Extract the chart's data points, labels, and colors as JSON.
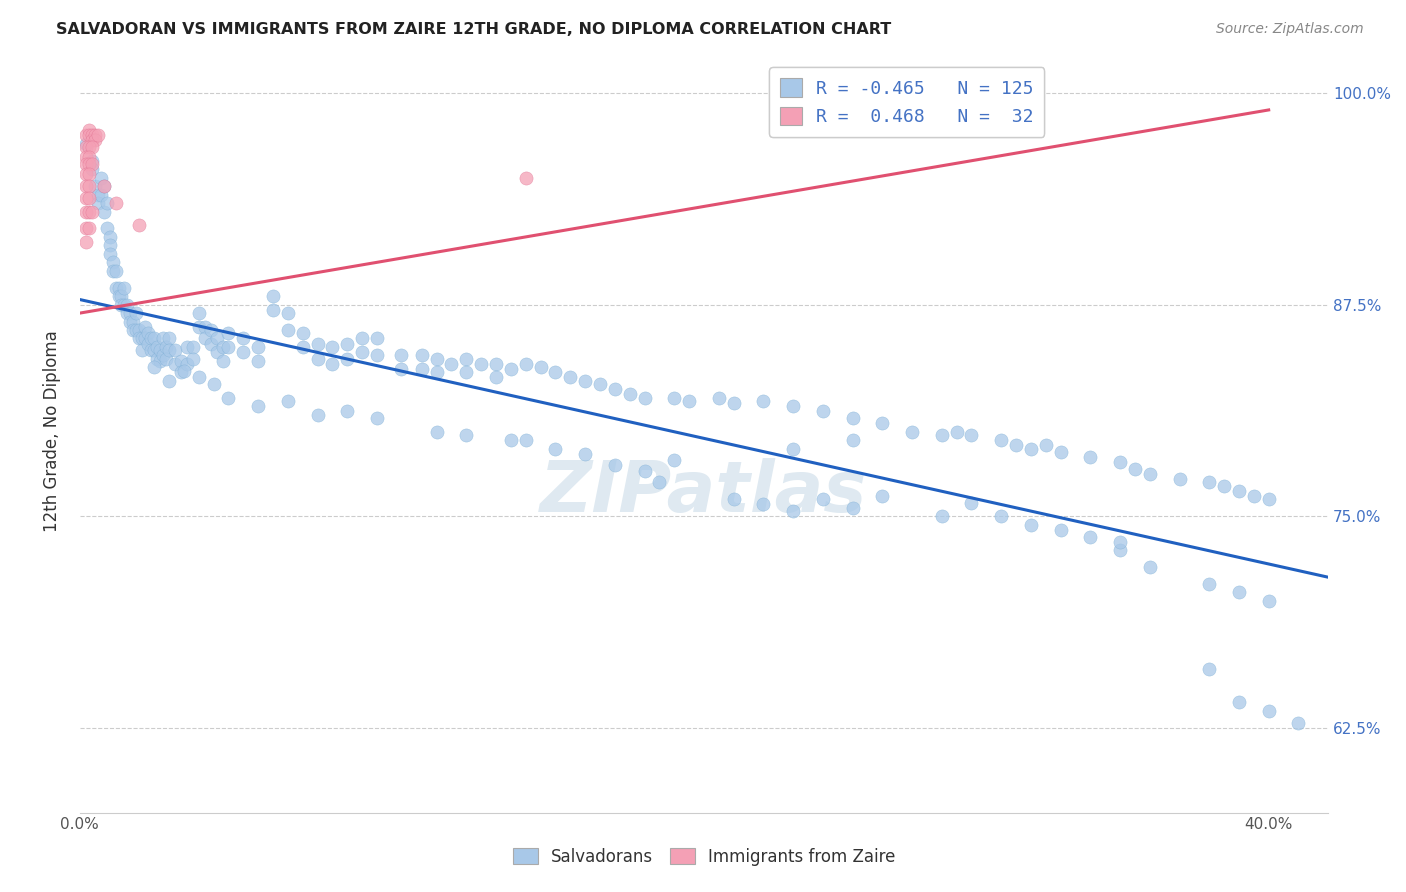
{
  "title": "SALVADORAN VS IMMIGRANTS FROM ZAIRE 12TH GRADE, NO DIPLOMA CORRELATION CHART",
  "source": "Source: ZipAtlas.com",
  "ylabel": "12th Grade, No Diploma",
  "xlim": [
    0.0,
    0.42
  ],
  "ylim": [
    0.575,
    1.025
  ],
  "blue_color": "#a8c8e8",
  "blue_edge_color": "#7aadd4",
  "pink_color": "#f4a0b5",
  "pink_edge_color": "#e07090",
  "trendline_blue_color": "#2060c0",
  "trendline_pink_color": "#e05070",
  "watermark": "ZIPatlas",
  "blue_trend_x": [
    0.0,
    0.42
  ],
  "blue_trend_y": [
    0.878,
    0.714
  ],
  "pink_trend_x": [
    0.0,
    0.4
  ],
  "pink_trend_y": [
    0.87,
    0.99
  ],
  "blue_points": [
    [
      0.002,
      0.97
    ],
    [
      0.004,
      0.96
    ],
    [
      0.004,
      0.955
    ],
    [
      0.005,
      0.945
    ],
    [
      0.006,
      0.94
    ],
    [
      0.006,
      0.935
    ],
    [
      0.007,
      0.95
    ],
    [
      0.007,
      0.94
    ],
    [
      0.008,
      0.93
    ],
    [
      0.008,
      0.945
    ],
    [
      0.009,
      0.92
    ],
    [
      0.009,
      0.935
    ],
    [
      0.01,
      0.915
    ],
    [
      0.01,
      0.91
    ],
    [
      0.01,
      0.905
    ],
    [
      0.011,
      0.9
    ],
    [
      0.011,
      0.895
    ],
    [
      0.012,
      0.895
    ],
    [
      0.012,
      0.885
    ],
    [
      0.013,
      0.885
    ],
    [
      0.013,
      0.88
    ],
    [
      0.014,
      0.88
    ],
    [
      0.014,
      0.875
    ],
    [
      0.015,
      0.885
    ],
    [
      0.015,
      0.875
    ],
    [
      0.016,
      0.875
    ],
    [
      0.016,
      0.87
    ],
    [
      0.017,
      0.87
    ],
    [
      0.017,
      0.865
    ],
    [
      0.018,
      0.865
    ],
    [
      0.018,
      0.86
    ],
    [
      0.019,
      0.86
    ],
    [
      0.019,
      0.87
    ],
    [
      0.02,
      0.86
    ],
    [
      0.02,
      0.855
    ],
    [
      0.021,
      0.855
    ],
    [
      0.021,
      0.848
    ],
    [
      0.022,
      0.862
    ],
    [
      0.022,
      0.855
    ],
    [
      0.023,
      0.858
    ],
    [
      0.023,
      0.852
    ],
    [
      0.024,
      0.855
    ],
    [
      0.024,
      0.848
    ],
    [
      0.025,
      0.855
    ],
    [
      0.025,
      0.848
    ],
    [
      0.026,
      0.85
    ],
    [
      0.026,
      0.843
    ],
    [
      0.027,
      0.848
    ],
    [
      0.027,
      0.842
    ],
    [
      0.028,
      0.855
    ],
    [
      0.028,
      0.845
    ],
    [
      0.029,
      0.85
    ],
    [
      0.029,
      0.843
    ],
    [
      0.03,
      0.855
    ],
    [
      0.03,
      0.848
    ],
    [
      0.032,
      0.848
    ],
    [
      0.032,
      0.84
    ],
    [
      0.034,
      0.842
    ],
    [
      0.034,
      0.835
    ],
    [
      0.036,
      0.85
    ],
    [
      0.036,
      0.84
    ],
    [
      0.038,
      0.85
    ],
    [
      0.038,
      0.843
    ],
    [
      0.04,
      0.87
    ],
    [
      0.04,
      0.862
    ],
    [
      0.042,
      0.862
    ],
    [
      0.042,
      0.855
    ],
    [
      0.044,
      0.86
    ],
    [
      0.044,
      0.852
    ],
    [
      0.046,
      0.855
    ],
    [
      0.046,
      0.847
    ],
    [
      0.048,
      0.85
    ],
    [
      0.048,
      0.842
    ],
    [
      0.05,
      0.858
    ],
    [
      0.05,
      0.85
    ],
    [
      0.055,
      0.855
    ],
    [
      0.055,
      0.847
    ],
    [
      0.06,
      0.85
    ],
    [
      0.06,
      0.842
    ],
    [
      0.065,
      0.88
    ],
    [
      0.065,
      0.872
    ],
    [
      0.07,
      0.87
    ],
    [
      0.07,
      0.86
    ],
    [
      0.075,
      0.858
    ],
    [
      0.075,
      0.85
    ],
    [
      0.08,
      0.852
    ],
    [
      0.08,
      0.843
    ],
    [
      0.085,
      0.85
    ],
    [
      0.085,
      0.84
    ],
    [
      0.09,
      0.852
    ],
    [
      0.09,
      0.843
    ],
    [
      0.095,
      0.855
    ],
    [
      0.095,
      0.847
    ],
    [
      0.1,
      0.855
    ],
    [
      0.1,
      0.845
    ],
    [
      0.108,
      0.845
    ],
    [
      0.108,
      0.837
    ],
    [
      0.115,
      0.845
    ],
    [
      0.115,
      0.837
    ],
    [
      0.12,
      0.843
    ],
    [
      0.12,
      0.835
    ],
    [
      0.125,
      0.84
    ],
    [
      0.13,
      0.843
    ],
    [
      0.13,
      0.835
    ],
    [
      0.135,
      0.84
    ],
    [
      0.14,
      0.84
    ],
    [
      0.14,
      0.832
    ],
    [
      0.145,
      0.837
    ],
    [
      0.15,
      0.84
    ],
    [
      0.155,
      0.838
    ],
    [
      0.16,
      0.835
    ],
    [
      0.165,
      0.832
    ],
    [
      0.17,
      0.83
    ],
    [
      0.175,
      0.828
    ],
    [
      0.18,
      0.825
    ],
    [
      0.185,
      0.822
    ],
    [
      0.19,
      0.82
    ],
    [
      0.2,
      0.82
    ],
    [
      0.205,
      0.818
    ],
    [
      0.215,
      0.82
    ],
    [
      0.22,
      0.817
    ],
    [
      0.23,
      0.818
    ],
    [
      0.24,
      0.815
    ],
    [
      0.25,
      0.812
    ],
    [
      0.26,
      0.808
    ],
    [
      0.27,
      0.805
    ],
    [
      0.28,
      0.8
    ],
    [
      0.29,
      0.798
    ],
    [
      0.295,
      0.8
    ],
    [
      0.3,
      0.798
    ],
    [
      0.31,
      0.795
    ],
    [
      0.315,
      0.792
    ],
    [
      0.32,
      0.79
    ],
    [
      0.325,
      0.792
    ],
    [
      0.33,
      0.788
    ],
    [
      0.34,
      0.785
    ],
    [
      0.35,
      0.782
    ],
    [
      0.355,
      0.778
    ],
    [
      0.36,
      0.775
    ],
    [
      0.37,
      0.772
    ],
    [
      0.38,
      0.77
    ],
    [
      0.385,
      0.768
    ],
    [
      0.39,
      0.765
    ],
    [
      0.395,
      0.762
    ],
    [
      0.4,
      0.76
    ],
    [
      0.24,
      0.79
    ],
    [
      0.26,
      0.795
    ],
    [
      0.18,
      0.78
    ],
    [
      0.19,
      0.777
    ],
    [
      0.12,
      0.8
    ],
    [
      0.13,
      0.798
    ],
    [
      0.08,
      0.81
    ],
    [
      0.06,
      0.815
    ],
    [
      0.05,
      0.82
    ],
    [
      0.03,
      0.83
    ],
    [
      0.025,
      0.838
    ],
    [
      0.16,
      0.79
    ],
    [
      0.145,
      0.795
    ],
    [
      0.17,
      0.787
    ],
    [
      0.2,
      0.783
    ],
    [
      0.35,
      0.73
    ],
    [
      0.36,
      0.72
    ],
    [
      0.38,
      0.71
    ],
    [
      0.39,
      0.705
    ],
    [
      0.4,
      0.7
    ],
    [
      0.25,
      0.76
    ],
    [
      0.26,
      0.755
    ],
    [
      0.27,
      0.762
    ],
    [
      0.3,
      0.758
    ],
    [
      0.31,
      0.75
    ],
    [
      0.32,
      0.745
    ],
    [
      0.33,
      0.742
    ],
    [
      0.34,
      0.738
    ],
    [
      0.35,
      0.735
    ],
    [
      0.38,
      0.66
    ],
    [
      0.39,
      0.64
    ],
    [
      0.4,
      0.635
    ],
    [
      0.41,
      0.628
    ],
    [
      0.22,
      0.76
    ],
    [
      0.23,
      0.757
    ],
    [
      0.24,
      0.753
    ],
    [
      0.29,
      0.75
    ],
    [
      0.195,
      0.77
    ],
    [
      0.15,
      0.795
    ],
    [
      0.1,
      0.808
    ],
    [
      0.09,
      0.812
    ],
    [
      0.07,
      0.818
    ],
    [
      0.045,
      0.828
    ],
    [
      0.04,
      0.832
    ],
    [
      0.035,
      0.836
    ]
  ],
  "pink_points": [
    [
      0.002,
      0.975
    ],
    [
      0.003,
      0.978
    ],
    [
      0.003,
      0.975
    ],
    [
      0.004,
      0.975
    ],
    [
      0.004,
      0.972
    ],
    [
      0.005,
      0.975
    ],
    [
      0.005,
      0.972
    ],
    [
      0.006,
      0.975
    ],
    [
      0.002,
      0.968
    ],
    [
      0.003,
      0.968
    ],
    [
      0.004,
      0.968
    ],
    [
      0.002,
      0.962
    ],
    [
      0.003,
      0.962
    ],
    [
      0.002,
      0.958
    ],
    [
      0.003,
      0.958
    ],
    [
      0.004,
      0.958
    ],
    [
      0.002,
      0.952
    ],
    [
      0.003,
      0.952
    ],
    [
      0.002,
      0.945
    ],
    [
      0.003,
      0.945
    ],
    [
      0.002,
      0.938
    ],
    [
      0.003,
      0.938
    ],
    [
      0.002,
      0.93
    ],
    [
      0.003,
      0.93
    ],
    [
      0.004,
      0.93
    ],
    [
      0.002,
      0.92
    ],
    [
      0.003,
      0.92
    ],
    [
      0.002,
      0.912
    ],
    [
      0.008,
      0.945
    ],
    [
      0.012,
      0.935
    ],
    [
      0.02,
      0.922
    ],
    [
      0.15,
      0.95
    ]
  ]
}
